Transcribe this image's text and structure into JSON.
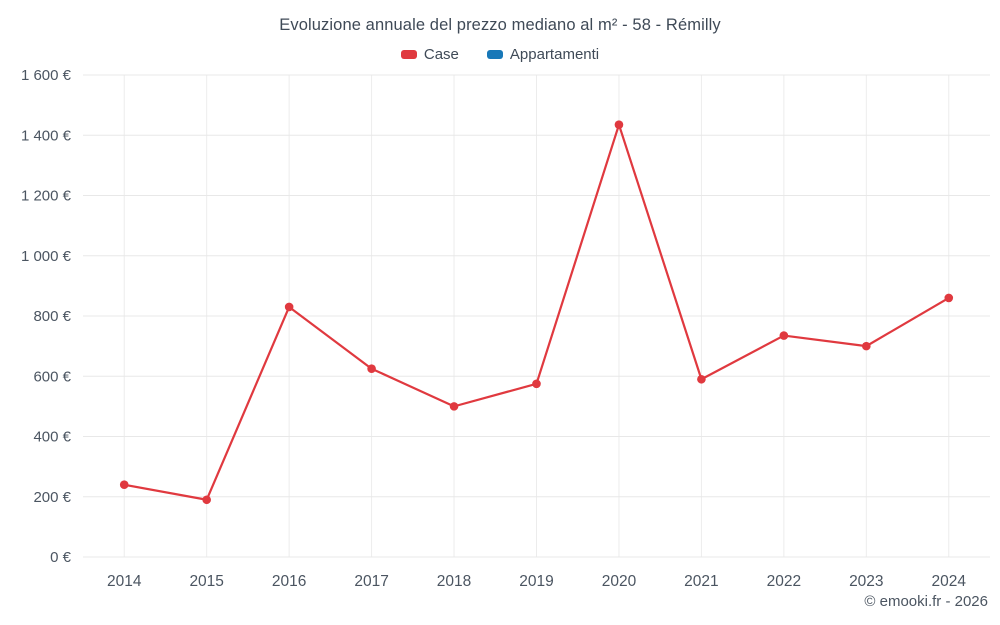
{
  "chart": {
    "title": "Evoluzione annuale del prezzo mediano al m² - 58 - Rémilly"
  },
  "footer": {
    "copyright": "© emooki.fr - 2026"
  },
  "chart_data": {
    "type": "line",
    "title": "Evoluzione annuale del prezzo mediano al m² - 58 - Rémilly",
    "categories": [
      "2014",
      "2015",
      "2016",
      "2017",
      "2018",
      "2019",
      "2020",
      "2021",
      "2022",
      "2023",
      "2024"
    ],
    "series": [
      {
        "name": "Case",
        "color": "#e0393f",
        "values": [
          240,
          190,
          830,
          625,
          500,
          575,
          1435,
          590,
          735,
          700,
          860
        ]
      },
      {
        "name": "Appartamenti",
        "color": "#1878b8",
        "values": []
      }
    ],
    "xlabel": "",
    "ylabel": "",
    "ylim": [
      0,
      1600
    ],
    "y_ticks": {
      "values": [
        0,
        200,
        400,
        600,
        800,
        1000,
        1200,
        1400,
        1600
      ],
      "labels": [
        "0 €",
        "200 €",
        "400 €",
        "600 €",
        "800 €",
        "1 000 €",
        "1 200 €",
        "1 400 €",
        "1 600 €"
      ]
    },
    "grid": true,
    "legend_position": "top",
    "annotations": []
  }
}
